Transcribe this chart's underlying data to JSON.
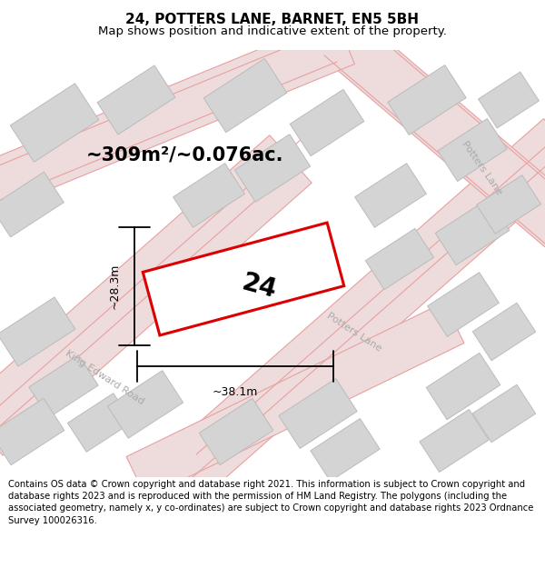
{
  "title": "24, POTTERS LANE, BARNET, EN5 5BH",
  "subtitle": "Map shows position and indicative extent of the property.",
  "footer": "Contains OS data © Crown copyright and database right 2021. This information is subject to Crown copyright and database rights 2023 and is reproduced with the permission of HM Land Registry. The polygons (including the associated geometry, namely x, y co-ordinates) are subject to Crown copyright and database rights 2023 Ordnance Survey 100026316.",
  "area_label": "~309m²/~0.076ac.",
  "plot_number": "24",
  "width_label": "~38.1m",
  "height_label": "~28.3m",
  "bg_color": "#f2f2f2",
  "plot_color": "#dd0000",
  "block_color": "#d4d4d4",
  "block_stroke": "#bbbbbb",
  "road_fill": "#eedcdc",
  "road_line": "#e8a0a0",
  "title_fontsize": 11,
  "subtitle_fontsize": 9.5,
  "footer_fontsize": 7.2,
  "area_fontsize": 15,
  "plot_num_fontsize": 20,
  "dim_fontsize": 9
}
